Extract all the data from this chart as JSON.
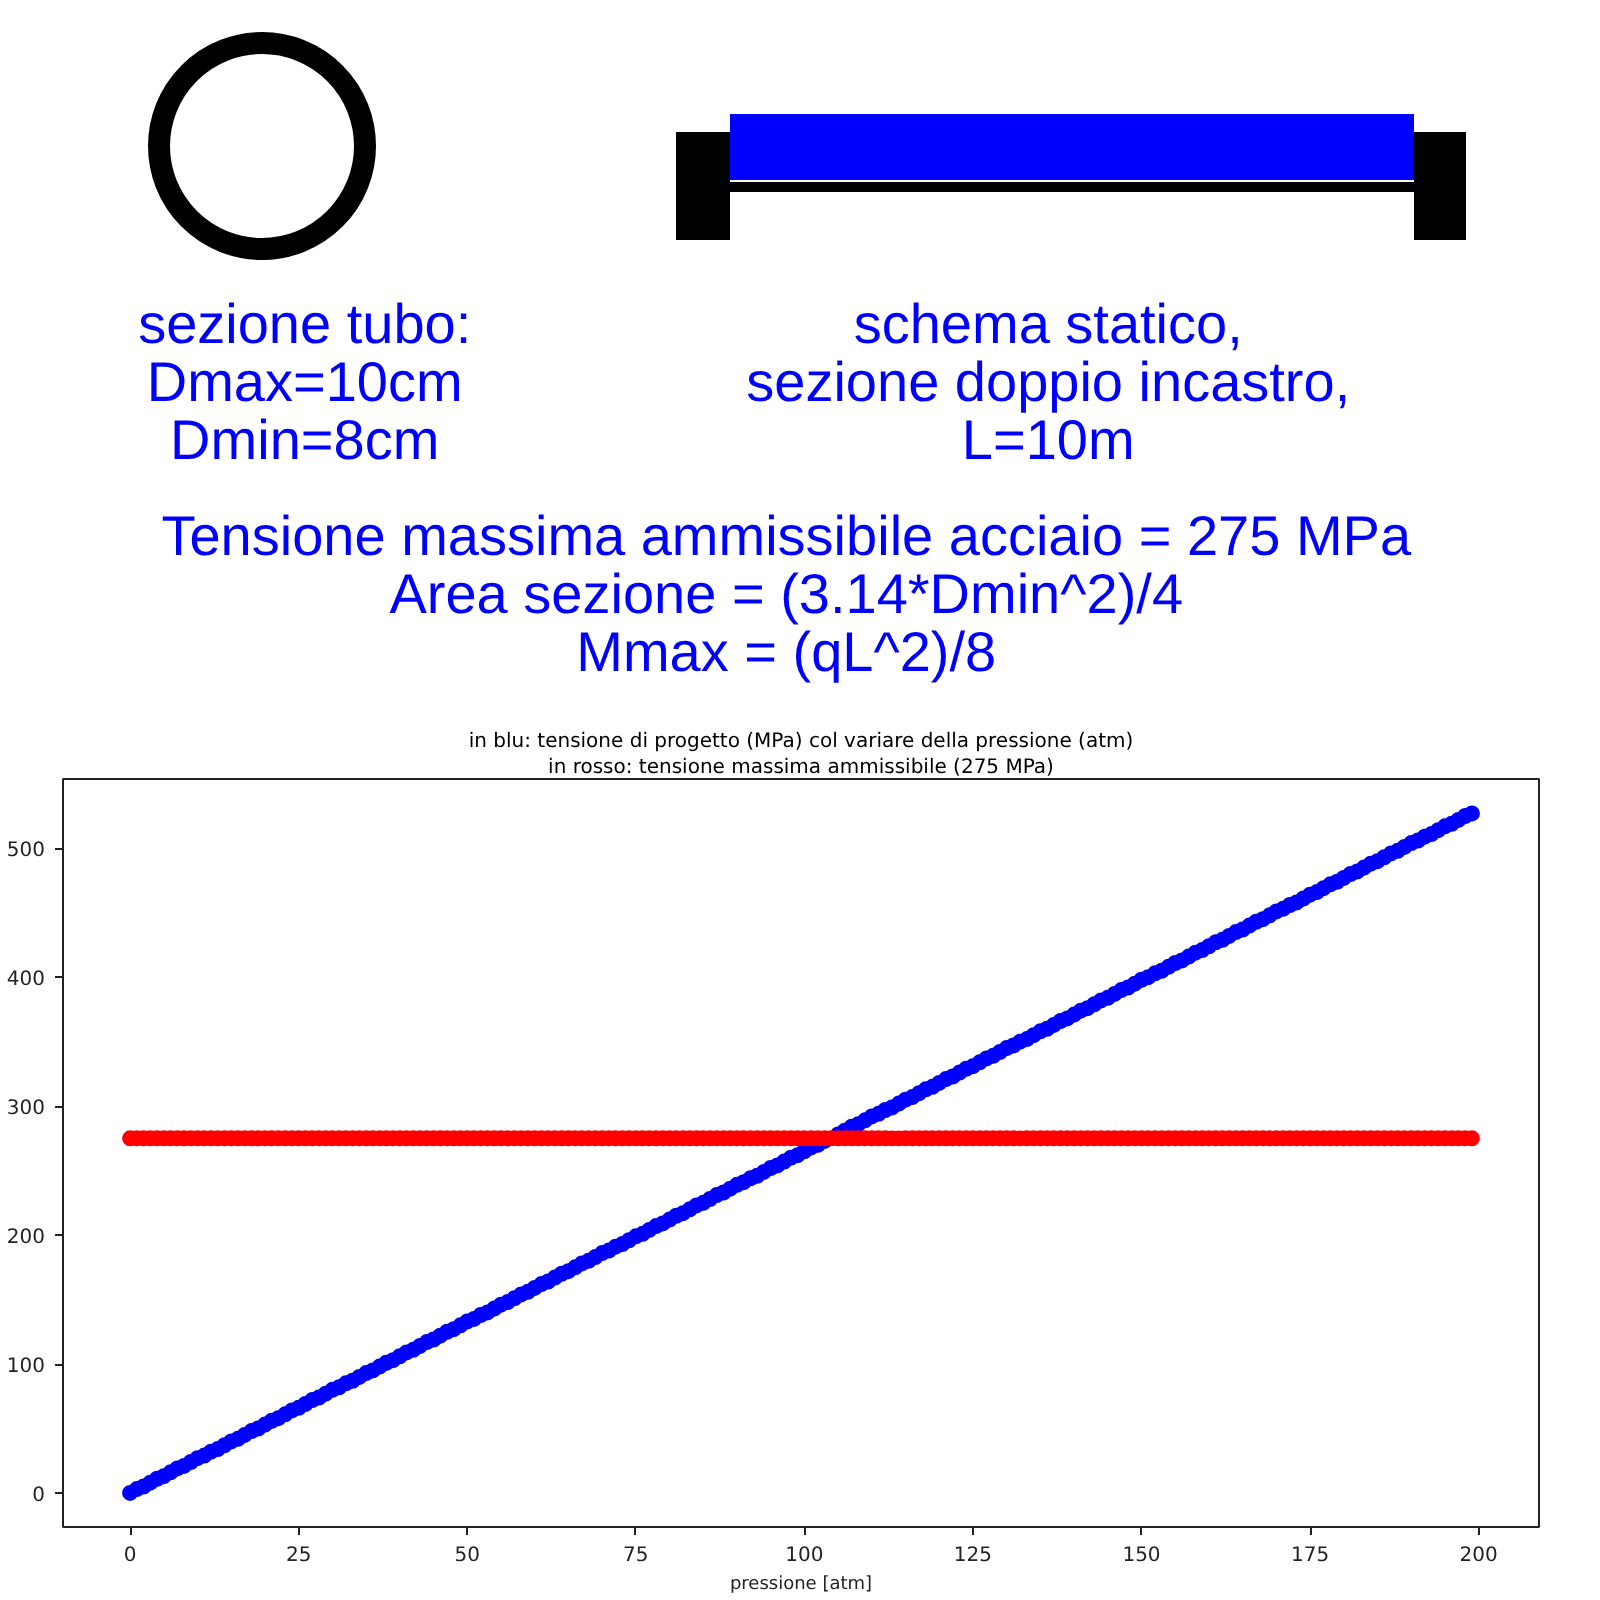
{
  "chart_data": {
    "type": "scatter",
    "title": "in blu: tensione di progetto (MPa) col variare della pressione (atm)",
    "subtitle": "in rosso: tensione massima ammissibile (275 MPa)",
    "xlabel": "pressione [atm]",
    "annotations": [
      "sezione tubo:\nDmax=10cm\nDmin=8cm",
      "schema statico,\nsezione doppio incastro,\nL=10m",
      "Tensione massima ammissibile acciaio = 275 MPa\nArea sezione = (3.14*Dmin^2)/4\nMmax = (qL^2)/8"
    ],
    "x": [
      0,
      1,
      2,
      3,
      4,
      5,
      6,
      7,
      8,
      9,
      10,
      11,
      12,
      13,
      14,
      15,
      16,
      17,
      18,
      19,
      20,
      21,
      22,
      23,
      24,
      25,
      26,
      27,
      28,
      29,
      30,
      31,
      32,
      33,
      34,
      35,
      36,
      37,
      38,
      39,
      40,
      41,
      42,
      43,
      44,
      45,
      46,
      47,
      48,
      49,
      50,
      51,
      52,
      53,
      54,
      55,
      56,
      57,
      58,
      59,
      60,
      61,
      62,
      63,
      64,
      65,
      66,
      67,
      68,
      69,
      70,
      71,
      72,
      73,
      74,
      75,
      76,
      77,
      78,
      79,
      80,
      81,
      82,
      83,
      84,
      85,
      86,
      87,
      88,
      89,
      90,
      91,
      92,
      93,
      94,
      95,
      96,
      97,
      98,
      99,
      100,
      101,
      102,
      103,
      104,
      105,
      106,
      107,
      108,
      109,
      110,
      111,
      112,
      113,
      114,
      115,
      116,
      117,
      118,
      119,
      120,
      121,
      122,
      123,
      124,
      125,
      126,
      127,
      128,
      129,
      130,
      131,
      132,
      133,
      134,
      135,
      136,
      137,
      138,
      139,
      140,
      141,
      142,
      143,
      144,
      145,
      146,
      147,
      148,
      149,
      150,
      151,
      152,
      153,
      154,
      155,
      156,
      157,
      158,
      159,
      160,
      161,
      162,
      163,
      164,
      165,
      166,
      167,
      168,
      169,
      170,
      171,
      172,
      173,
      174,
      175,
      176,
      177,
      178,
      179,
      180,
      181,
      182,
      183,
      184,
      185,
      186,
      187,
      188,
      189,
      190,
      191,
      192,
      193,
      194,
      195,
      196,
      197,
      198,
      199
    ],
    "series": [
      {
        "color": "#0000ff",
        "values": [
          0,
          3,
          5,
          8,
          11,
          13,
          16,
          19,
          21,
          24,
          27,
          29,
          32,
          34,
          37,
          40,
          42,
          45,
          48,
          50,
          53,
          56,
          58,
          61,
          64,
          66,
          69,
          72,
          74,
          77,
          80,
          82,
          85,
          87,
          90,
          93,
          95,
          98,
          101,
          103,
          106,
          109,
          111,
          114,
          117,
          119,
          122,
          125,
          127,
          130,
          133,
          135,
          138,
          140,
          143,
          146,
          148,
          151,
          154,
          156,
          159,
          162,
          164,
          167,
          170,
          172,
          175,
          178,
          180,
          183,
          186,
          188,
          191,
          193,
          196,
          199,
          201,
          204,
          207,
          209,
          212,
          215,
          217,
          220,
          223,
          225,
          228,
          231,
          233,
          236,
          239,
          241,
          244,
          246,
          249,
          252,
          254,
          257,
          260,
          262,
          265,
          268,
          270,
          273,
          null,
          278,
          281,
          284,
          286,
          289,
          292,
          294,
          297,
          299,
          302,
          305,
          307,
          310,
          313,
          315,
          318,
          321,
          323,
          326,
          329,
          331,
          334,
          337,
          339,
          342,
          345,
          347,
          350,
          352,
          355,
          358,
          360,
          363,
          366,
          368,
          371,
          374,
          376,
          379,
          382,
          384,
          387,
          390,
          392,
          395,
          398,
          400,
          403,
          405,
          408,
          411,
          413,
          416,
          419,
          421,
          424,
          427,
          429,
          432,
          435,
          437,
          440,
          443,
          445,
          448,
          451,
          453,
          456,
          458,
          461,
          464,
          466,
          469,
          472,
          474,
          477,
          480,
          482,
          485,
          488,
          490,
          493,
          496,
          498,
          501,
          504,
          506,
          509,
          511,
          514,
          517,
          519,
          522,
          525,
          527
        ]
      },
      {
        "color": "#ff0000",
        "values": [
          275,
          275,
          275,
          275,
          275,
          275,
          275,
          275,
          275,
          275,
          275,
          275,
          275,
          275,
          275,
          275,
          275,
          275,
          275,
          275,
          275,
          275,
          275,
          275,
          275,
          275,
          275,
          275,
          275,
          275,
          275,
          275,
          275,
          275,
          275,
          275,
          275,
          275,
          275,
          275,
          275,
          275,
          275,
          275,
          275,
          275,
          275,
          275,
          275,
          275,
          275,
          275,
          275,
          275,
          275,
          275,
          275,
          275,
          275,
          275,
          275,
          275,
          275,
          275,
          275,
          275,
          275,
          275,
          275,
          275,
          275,
          275,
          275,
          275,
          275,
          275,
          275,
          275,
          275,
          275,
          275,
          275,
          275,
          275,
          275,
          275,
          275,
          275,
          275,
          275,
          275,
          275,
          275,
          275,
          275,
          275,
          275,
          275,
          275,
          275,
          275,
          275,
          275,
          275,
          275,
          275,
          275,
          275,
          275,
          275,
          275,
          275,
          275,
          275,
          275,
          275,
          275,
          275,
          275,
          275,
          275,
          275,
          275,
          275,
          275,
          275,
          275,
          275,
          275,
          275,
          275,
          275,
          275,
          275,
          275,
          275,
          275,
          275,
          275,
          275,
          275,
          275,
          275,
          275,
          275,
          275,
          275,
          275,
          275,
          275,
          275,
          275,
          275,
          275,
          275,
          275,
          275,
          275,
          275,
          275,
          275,
          275,
          275,
          275,
          275,
          275,
          275,
          275,
          275,
          275,
          275,
          275,
          275,
          275,
          275,
          275,
          275,
          275,
          275,
          275,
          275,
          275,
          275,
          275,
          275,
          275,
          275,
          275,
          275,
          275,
          275,
          275,
          275,
          275,
          275,
          275,
          275,
          275,
          275,
          275
        ]
      }
    ],
    "xlim": [
      -9.95,
      208.95
    ],
    "ylim": [
      -26.4,
      553.7
    ],
    "xticks": [
      0,
      25,
      50,
      75,
      100,
      125,
      150,
      175,
      200
    ],
    "yticks": [
      0,
      100,
      200,
      300,
      400,
      500
    ],
    "grid": false,
    "marker": "circle"
  }
}
